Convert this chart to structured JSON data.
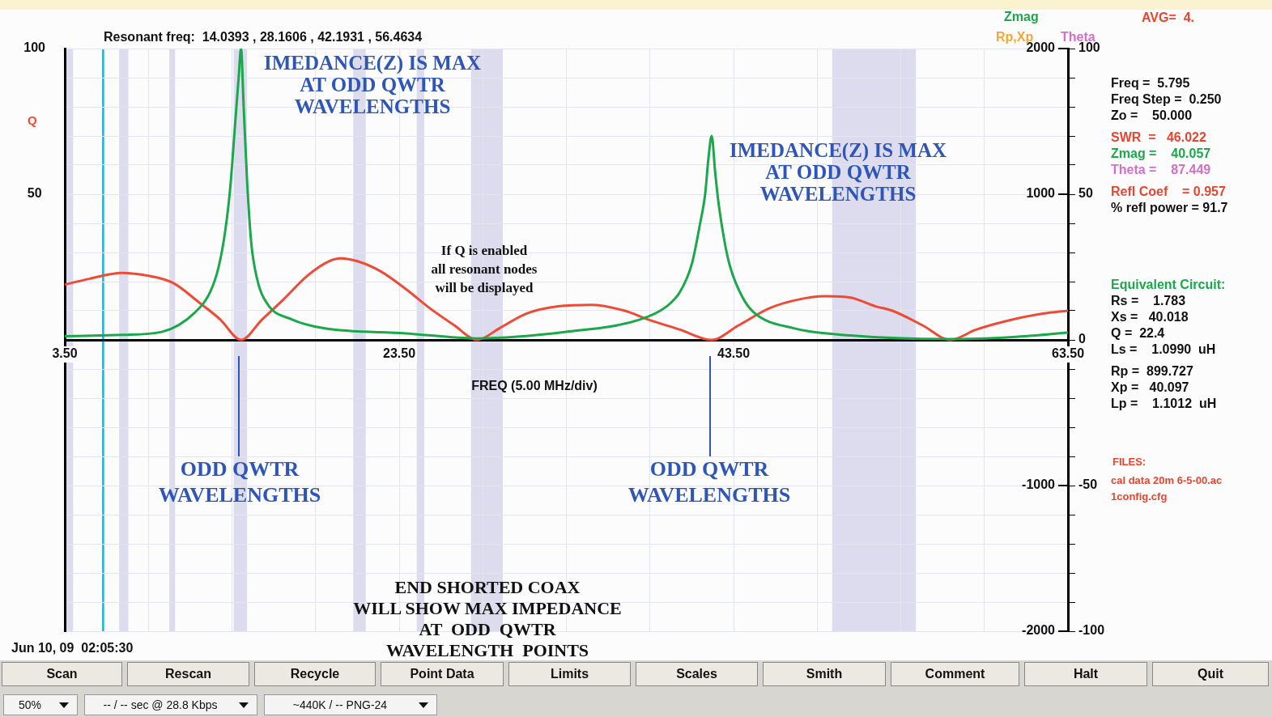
{
  "chart_data": {
    "type": "line",
    "title": "Resonant freq:  14.0393 , 28.1606 , 42.1931 , 56.4634",
    "xlabel": "FREQ (5.00 MHz/div)",
    "ylabel": "Q",
    "y2label": "Rp,Xp",
    "y3label": "Theta",
    "xlim": [
      3.5,
      63.5
    ],
    "xticks": [
      {
        "value": 3.5,
        "label": "3.50"
      },
      {
        "value": 8.5,
        "label": null
      },
      {
        "value": 13.5,
        "label": null
      },
      {
        "value": 18.5,
        "label": null
      },
      {
        "value": 23.5,
        "label": "23.50"
      },
      {
        "value": 28.5,
        "label": null
      },
      {
        "value": 33.5,
        "label": null
      },
      {
        "value": 38.5,
        "label": null
      },
      {
        "value": 43.5,
        "label": "43.50"
      },
      {
        "value": 48.5,
        "label": null
      },
      {
        "value": 53.5,
        "label": null
      },
      {
        "value": 58.5,
        "label": null
      },
      {
        "value": 63.5,
        "label": "63.50"
      }
    ],
    "ylim": [
      -100,
      100
    ],
    "yticks": [
      100,
      50
    ],
    "y2lim": [
      -2000,
      2000
    ],
    "y2ticks": [
      2000,
      1000,
      {
        "value": 0,
        "label": null
      },
      -1000,
      -2000
    ],
    "y3lim": [
      -100,
      100
    ],
    "y3ticks": [
      100,
      {
        "value": 90,
        "label": null
      },
      {
        "value": 80,
        "label": null
      },
      {
        "value": 70,
        "label": null
      },
      {
        "value": 60,
        "label": null
      },
      50,
      {
        "value": 40,
        "label": null
      },
      {
        "value": 30,
        "label": null
      },
      {
        "value": 20,
        "label": null
      },
      {
        "value": 10,
        "label": null
      },
      0,
      {
        "value": -10,
        "label": null
      },
      {
        "value": -20,
        "label": null
      },
      {
        "value": -30,
        "label": null
      },
      {
        "value": -40,
        "label": null
      },
      -50,
      {
        "value": -60,
        "label": null
      },
      {
        "value": -70,
        "label": null
      },
      {
        "value": -80,
        "label": null
      },
      {
        "value": -90,
        "label": null
      },
      -100
    ],
    "grid": true,
    "legend": "top right",
    "marker": "none",
    "line_style": "solid",
    "series": [
      {
        "name": "Zmag",
        "color": "#1aa84a",
        "axis": "y2",
        "x": [
          3.5,
          7,
          9.3,
          11.3,
          12.2,
          12.7,
          13.1,
          13.4,
          13.7,
          13.9,
          14.04,
          14.2,
          14.4,
          14.65,
          15,
          15.6,
          17.1,
          19,
          23.9,
          28.2,
          33.5,
          37.9,
          39.5,
          40.3,
          41.0,
          41.5,
          41.8,
          42.0,
          42.19,
          42.4,
          42.6,
          43.0,
          43.3,
          44.0,
          44.7,
          47.1,
          50.5,
          56.3,
          60.2,
          63.5
        ],
        "values": [
          25,
          35,
          55,
          190,
          330,
          500,
          750,
          1050,
          1500,
          1800,
          2000,
          1600,
          1100,
          670,
          420,
          250,
          140,
          80,
          45,
          10,
          55,
          140,
          230,
          330,
          520,
          800,
          1000,
          1250,
          1400,
          1150,
          940,
          650,
          500,
          300,
          190,
          80,
          30,
          5,
          20,
          50
        ]
      },
      {
        "color": "#ee4b36",
        "axis": "y",
        "x": [
          3.5,
          5,
          6.9,
          8.5,
          10,
          11.5,
          12.8,
          14.04,
          15.3,
          16.6,
          18,
          19.3,
          20,
          21,
          22.4,
          24,
          25.3,
          26.8,
          28.16,
          29.5,
          31.1,
          33,
          35,
          37,
          38.4,
          40.3,
          42.19,
          43.8,
          45.7,
          47.5,
          49.1,
          50.5,
          52,
          53,
          54.8,
          56.46,
          58,
          60.2,
          62,
          63.5
        ],
        "values": [
          19,
          21,
          23,
          22,
          19.5,
          13,
          7,
          0,
          7,
          14,
          22,
          27,
          28,
          27,
          23.5,
          17,
          11,
          5,
          0,
          4,
          9,
          11.5,
          12,
          10,
          7,
          3.5,
          0,
          5,
          11,
          14,
          15,
          14.5,
          11.5,
          10,
          5,
          0,
          3.5,
          7,
          9,
          10
        ]
      }
    ],
    "bands": [
      {
        "axis": "x",
        "from": 3.6,
        "to": 4.0,
        "color": "#dcdcee"
      },
      {
        "axis": "x",
        "from": 6.75,
        "to": 7.3,
        "color": "#dcdcee"
      },
      {
        "axis": "x",
        "from": 9.75,
        "to": 10.1,
        "color": "#dcdcee"
      },
      {
        "axis": "x",
        "from": 13.6,
        "to": 14.4,
        "color": "#dcdcee"
      },
      {
        "axis": "x",
        "from": 20.75,
        "to": 21.5,
        "color": "#dcdcee"
      },
      {
        "axis": "x",
        "from": 24.55,
        "to": 25.0,
        "color": "#dcdcee"
      },
      {
        "axis": "x",
        "from": 27.8,
        "to": 29.7,
        "color": "#dcdcee"
      },
      {
        "axis": "x",
        "from": 49.4,
        "to": 54.4,
        "color": "#dcdcee"
      }
    ],
    "ref_lines": [
      {
        "axis": "x",
        "value": 5.795,
        "color": "#19b4d2"
      }
    ],
    "annotations": [
      "IMEDANCE(Z) IS MAX\nAT ODD QWTR\nWAVELENGTHS",
      "IMEDANCE(Z) IS MAX\nAT ODD QWTR\nWAVELENGTHS",
      "ODD QWTR\nWAVELENGTHS",
      "ODD QWTR\nWAVELENGTHS",
      "If Q is enabled\nall resonant nodes\nwill be displayed",
      "END SHORTED COAX\nWILL SHOW MAX IMPEDANCE\nAT  ODD  QWTR\nWAVELENGTH  POINTS",
      "AVG=  4.",
      "Freq =  5.795",
      "Freq Step =  0.250",
      "Zo =    50.000",
      "SWR  =   46.022",
      "Zmag =    40.057",
      "Theta =    87.449",
      "Refl Coef    = 0.957",
      "% refl power = 91.7",
      "Equivalent Circuit:",
      "Rs =    1.783",
      "Xs =   40.018",
      "Q =  22.4",
      "Ls =    1.0990  uH",
      "Rp =  899.727",
      "Xp =   40.097",
      "Lp =    1.1012  uH",
      "FILES:",
      "cal data 20m 6-5-00.ac",
      "1config.cfg",
      "Jun 10, 09  02:05:30",
      "Scan",
      "Rescan",
      "Recycle",
      "Point Data",
      "Limits",
      "Scales",
      "Smith",
      "Comment",
      "Halt",
      "Quit",
      "50%",
      "-- / -- sec @ 28.8 Kbps",
      "~440K / -- PNG-24"
    ]
  }
}
